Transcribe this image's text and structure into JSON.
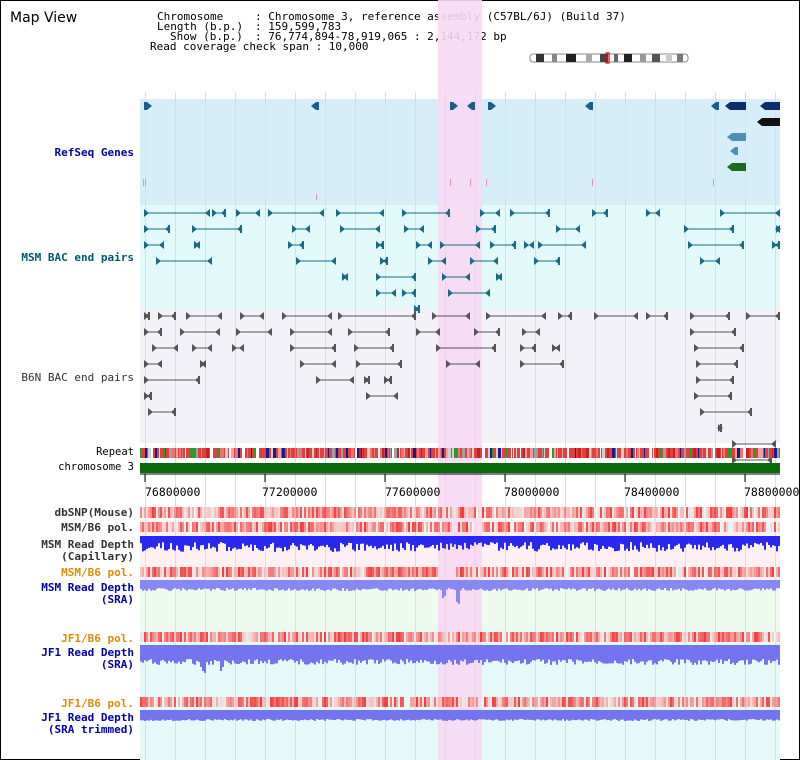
{
  "title": "Map View",
  "info": {
    "chromosome_key": "Chromosome",
    "chromosome_val": ": Chromosome 3, reference assembly (C57BL/6J) (Build 37)",
    "length_key": "Length (b.p.)",
    "length_val": ": 159,599,783",
    "show_key": "Show (b.p.)",
    "show_val": ": 76,774,894-78,919,065 : 2,144,172 bp",
    "coverage": "Read coverage check span : 10,000"
  },
  "tracks": {
    "refseq": "RefSeq Genes",
    "msm_bac": "MSM BAC end pairs",
    "b6n_bac": "B6N BAC end pairs",
    "repeat": "Repeat",
    "chromosome": "chromosome 3",
    "dbsnp": "dbSNP(Mouse)",
    "msm_pol1": "MSM/B6 pol.",
    "msm_depth_cap_1": "MSM Read Depth",
    "msm_depth_cap_2": "(Capillary)",
    "msm_pol2": "MSM/B6 pol.",
    "msm_depth_sra_1": "MSM Read Depth",
    "msm_depth_sra_2": "(SRA)",
    "jf1_pol1": "JF1/B6 pol.",
    "jf1_depth_sra_1": "JF1 Read Depth",
    "jf1_depth_sra_2": "(SRA)",
    "jf1_pol2": "JF1/B6 pol.",
    "jf1_depth_trim_1": "JF1 Read Depth",
    "jf1_depth_trim_2": "(SRA trimmed)"
  },
  "axis_ticks": [
    "76800000",
    "77200000",
    "77600000",
    "78000000",
    "78400000",
    "78800000"
  ],
  "colors": {
    "refseq_bg": "#d6eefa",
    "msm_bac_bg": "#e3fafa",
    "b6n_bac_bg": "#f2f2f8",
    "highlight": "#f8d8f4",
    "chromosome": "#0a6b0a",
    "depth_blue": "#2828f0",
    "depth_light_blue": "#8888f4",
    "label_blue": "#0000aa",
    "label_orange": "#e08c00",
    "label_teal": "#005a6e"
  }
}
